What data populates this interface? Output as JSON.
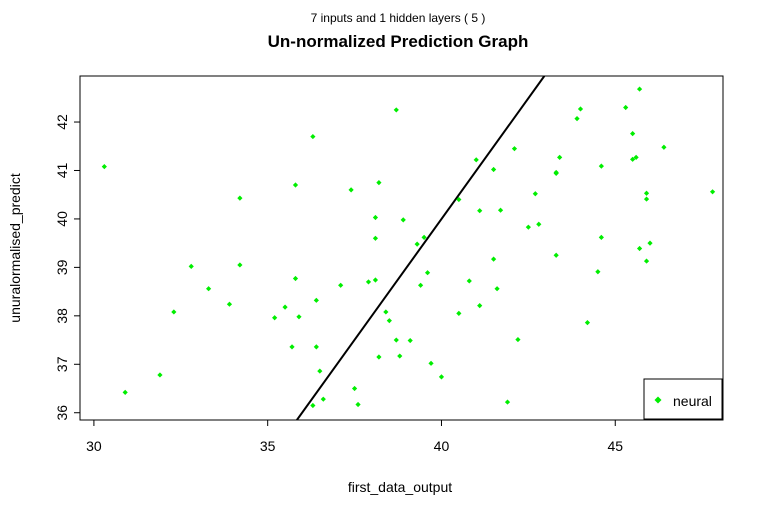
{
  "chart_data": {
    "type": "scatter",
    "subtitle": "7 inputs and 1 hidden layers ( 5 )",
    "title": "Un-normalized Prediction Graph",
    "xlabel": "first_data_output",
    "ylabel": "unuralormalised_predict",
    "xlim": [
      29.6,
      48.1
    ],
    "ylim": [
      35.85,
      42.95
    ],
    "x_ticks": [
      30,
      35,
      40,
      45
    ],
    "y_ticks": [
      36,
      37,
      38,
      39,
      40,
      41,
      42
    ],
    "grid": false,
    "legend": {
      "position": "bottom-right",
      "entries": [
        "neural"
      ]
    },
    "series": [
      {
        "name": "neural",
        "color": "#00ee00",
        "points": [
          [
            30.3,
            41.08
          ],
          [
            30.9,
            36.42
          ],
          [
            31.9,
            36.78
          ],
          [
            32.3,
            38.08
          ],
          [
            32.8,
            39.02
          ],
          [
            33.3,
            38.56
          ],
          [
            33.9,
            38.24
          ],
          [
            34.2,
            40.43
          ],
          [
            34.2,
            39.05
          ],
          [
            35.2,
            37.96
          ],
          [
            35.5,
            38.18
          ],
          [
            35.7,
            37.36
          ],
          [
            35.8,
            40.7
          ],
          [
            35.8,
            38.77
          ],
          [
            35.9,
            37.98
          ],
          [
            36.3,
            41.7
          ],
          [
            36.3,
            36.15
          ],
          [
            36.4,
            38.32
          ],
          [
            36.4,
            37.36
          ],
          [
            36.5,
            36.86
          ],
          [
            36.6,
            36.28
          ],
          [
            37.1,
            38.63
          ],
          [
            37.4,
            40.6
          ],
          [
            37.5,
            36.5
          ],
          [
            37.6,
            36.17
          ],
          [
            37.9,
            38.7
          ],
          [
            38.1,
            40.03
          ],
          [
            38.1,
            39.6
          ],
          [
            38.1,
            38.74
          ],
          [
            38.2,
            40.75
          ],
          [
            38.2,
            37.15
          ],
          [
            38.4,
            38.08
          ],
          [
            38.5,
            37.9
          ],
          [
            38.7,
            42.25
          ],
          [
            38.7,
            37.5
          ],
          [
            38.8,
            37.17
          ],
          [
            38.9,
            39.98
          ],
          [
            39.1,
            37.49
          ],
          [
            39.3,
            39.48
          ],
          [
            39.4,
            38.63
          ],
          [
            39.5,
            39.62
          ],
          [
            39.6,
            38.89
          ],
          [
            39.7,
            37.02
          ],
          [
            40.0,
            36.74
          ],
          [
            40.5,
            40.4
          ],
          [
            40.5,
            38.05
          ],
          [
            40.8,
            38.72
          ],
          [
            41.0,
            41.22
          ],
          [
            41.1,
            40.17
          ],
          [
            41.1,
            38.21
          ],
          [
            41.5,
            41.02
          ],
          [
            41.5,
            39.17
          ],
          [
            41.6,
            38.56
          ],
          [
            41.7,
            40.18
          ],
          [
            41.9,
            36.22
          ],
          [
            42.1,
            41.45
          ],
          [
            42.2,
            37.51
          ],
          [
            42.5,
            39.83
          ],
          [
            42.7,
            40.52
          ],
          [
            42.8,
            39.89
          ],
          [
            43.3,
            40.94
          ],
          [
            43.3,
            40.96
          ],
          [
            43.3,
            39.25
          ],
          [
            43.4,
            41.27
          ],
          [
            43.9,
            42.07
          ],
          [
            44.0,
            42.27
          ],
          [
            44.2,
            37.86
          ],
          [
            44.5,
            38.91
          ],
          [
            44.6,
            41.09
          ],
          [
            44.6,
            39.62
          ],
          [
            45.3,
            42.3
          ],
          [
            45.5,
            41.76
          ],
          [
            45.5,
            41.23
          ],
          [
            45.6,
            41.27
          ],
          [
            45.7,
            42.68
          ],
          [
            45.7,
            39.39
          ],
          [
            45.9,
            40.53
          ],
          [
            45.9,
            40.41
          ],
          [
            45.9,
            39.13
          ],
          [
            46.0,
            39.5
          ],
          [
            46.4,
            41.48
          ],
          [
            47.8,
            40.56
          ]
        ]
      }
    ],
    "reference_line": {
      "color": "#000000",
      "from": [
        35.84,
        35.85
      ],
      "to": [
        42.96,
        42.95
      ]
    }
  }
}
